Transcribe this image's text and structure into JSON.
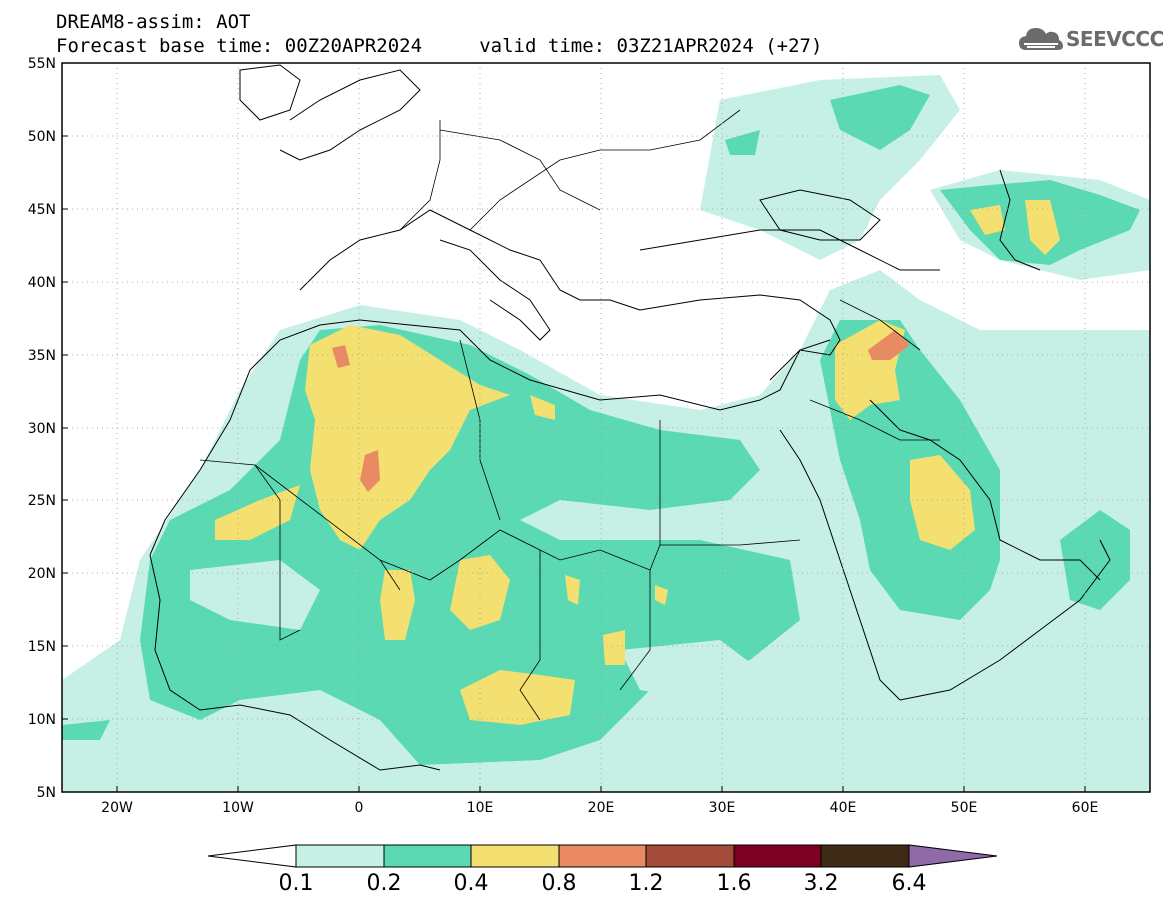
{
  "header": {
    "line1": "DREAM8-assim: AOT",
    "line2": "Forecast base time: 00Z20APR2024     valid time: 03Z21APR2024 (+27)"
  },
  "logo": {
    "text": "SEEVCCC",
    "icon": "cloud-icon"
  },
  "map": {
    "lon_range": [
      -25,
      65
    ],
    "lat_range": [
      5,
      55
    ],
    "y_tick_labels": [
      "5N",
      "10N",
      "15N",
      "20N",
      "25N",
      "30N",
      "35N",
      "40N",
      "45N",
      "50N",
      "55N"
    ],
    "x_tick_labels": [
      "20W",
      "10W",
      "0",
      "10E",
      "20E",
      "30E",
      "40E",
      "50E",
      "60E"
    ],
    "grid": "dotted"
  },
  "colorbar": {
    "labels": [
      "0.1",
      "0.2",
      "0.4",
      "0.8",
      "1.2",
      "1.6",
      "3.2",
      "6.4"
    ],
    "colors": [
      "#ffffff",
      "#c6f0e6",
      "#5ad9b3",
      "#f4e070",
      "#e98a62",
      "#a54b3b",
      "#7d0022",
      "#3f2a17",
      "#8e6aa6"
    ]
  }
}
